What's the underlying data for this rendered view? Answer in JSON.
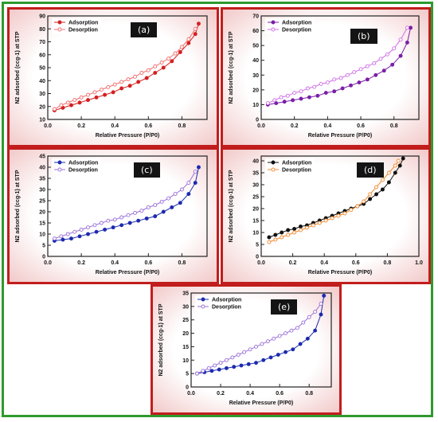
{
  "colors": {
    "frame": "#2e9a2e",
    "panel_border": "#c21d1d"
  },
  "chart_data": [
    {
      "type": "line",
      "panel_label": "(a)",
      "xlabel": "Relative Pressure (P/P0)",
      "ylabel": "N2 adsorbed (ccg-1) at STP",
      "xlim": [
        0.0,
        0.95
      ],
      "ylim": [
        10,
        90
      ],
      "xticks": [
        "0.0",
        "0.2",
        "0.4",
        "0.6",
        "0.8"
      ],
      "xtick_values": [
        0.0,
        0.2,
        0.4,
        0.6,
        0.8
      ],
      "yticks": [
        "10",
        "20",
        "30",
        "40",
        "50",
        "60",
        "70",
        "80",
        "90"
      ],
      "ytick_values": [
        10,
        20,
        30,
        40,
        50,
        60,
        70,
        80,
        90
      ],
      "legend_position": "top-left",
      "series": [
        {
          "name": "Adsorption",
          "color": "#d42020",
          "filled": true,
          "x": [
            0.04,
            0.09,
            0.14,
            0.19,
            0.24,
            0.29,
            0.34,
            0.39,
            0.44,
            0.49,
            0.54,
            0.59,
            0.64,
            0.69,
            0.74,
            0.79,
            0.84,
            0.88,
            0.9
          ],
          "y": [
            17,
            19,
            21,
            23,
            25,
            27,
            29,
            31,
            34,
            36,
            39,
            42,
            46,
            50,
            55,
            62,
            69,
            76,
            84
          ]
        },
        {
          "name": "Desorption",
          "color": "#f07070",
          "filled": false,
          "x": [
            0.04,
            0.08,
            0.12,
            0.16,
            0.2,
            0.24,
            0.28,
            0.32,
            0.36,
            0.4,
            0.44,
            0.48,
            0.52,
            0.56,
            0.6,
            0.64,
            0.68,
            0.72,
            0.76,
            0.8,
            0.84,
            0.88
          ],
          "y": [
            18,
            21,
            23,
            25,
            27,
            29,
            31,
            33,
            35,
            37,
            39,
            41,
            43,
            46,
            48,
            51,
            54,
            57,
            61,
            66,
            72,
            80
          ]
        }
      ]
    },
    {
      "type": "line",
      "panel_label": "(b)",
      "xlabel": "Relative Pressure (P/P0)",
      "ylabel": "N2 adsorbed (ccg-1) at STP",
      "xlim": [
        0.0,
        0.95
      ],
      "ylim": [
        0,
        70
      ],
      "xticks": [
        "0.0",
        "0.2",
        "0.4",
        "0.6",
        "0.8"
      ],
      "xtick_values": [
        0.0,
        0.2,
        0.4,
        0.6,
        0.8
      ],
      "yticks": [
        "0",
        "10",
        "20",
        "30",
        "40",
        "50",
        "60",
        "70"
      ],
      "ytick_values": [
        0,
        10,
        20,
        30,
        40,
        50,
        60,
        70
      ],
      "legend_position": "top-left",
      "series": [
        {
          "name": "Adsorption",
          "color": "#7a1fa8",
          "filled": true,
          "x": [
            0.04,
            0.09,
            0.14,
            0.19,
            0.24,
            0.29,
            0.34,
            0.39,
            0.44,
            0.49,
            0.54,
            0.59,
            0.64,
            0.69,
            0.74,
            0.79,
            0.84,
            0.88,
            0.9
          ],
          "y": [
            10,
            11,
            12,
            13,
            14,
            15,
            16,
            18,
            19,
            21,
            23,
            25,
            27,
            30,
            33,
            37,
            43,
            52,
            62
          ]
        },
        {
          "name": "Desorption",
          "color": "#cf6fe6",
          "filled": false,
          "x": [
            0.04,
            0.08,
            0.12,
            0.16,
            0.2,
            0.24,
            0.28,
            0.32,
            0.36,
            0.4,
            0.44,
            0.48,
            0.52,
            0.56,
            0.6,
            0.64,
            0.68,
            0.72,
            0.76,
            0.8,
            0.84,
            0.88
          ],
          "y": [
            11,
            13,
            15,
            16,
            18,
            19,
            21,
            22,
            24,
            25,
            27,
            28,
            30,
            32,
            34,
            36,
            38,
            41,
            44,
            48,
            54,
            62
          ]
        }
      ]
    },
    {
      "type": "line",
      "panel_label": "(c)",
      "xlabel": "Relative Pressure (P/P0)",
      "ylabel": "N2 adsorbed (ccg-1) at STP",
      "xlim": [
        0.0,
        0.95
      ],
      "ylim": [
        0,
        45
      ],
      "xticks": [
        "0.0",
        "0.2",
        "0.4",
        "0.6",
        "0.8"
      ],
      "xtick_values": [
        0.0,
        0.2,
        0.4,
        0.6,
        0.8
      ],
      "yticks": [
        "0",
        "5",
        "10",
        "15",
        "20",
        "25",
        "30",
        "35",
        "40",
        "45"
      ],
      "ytick_values": [
        0,
        5,
        10,
        15,
        20,
        25,
        30,
        35,
        40,
        45
      ],
      "legend_position": "top-left",
      "series": [
        {
          "name": "Adsorption",
          "color": "#1c2ab0",
          "filled": true,
          "x": [
            0.04,
            0.09,
            0.14,
            0.19,
            0.24,
            0.29,
            0.34,
            0.39,
            0.44,
            0.49,
            0.54,
            0.59,
            0.64,
            0.69,
            0.74,
            0.79,
            0.84,
            0.88,
            0.9
          ],
          "y": [
            7,
            7.5,
            8,
            9,
            10,
            11,
            12,
            13,
            14,
            15,
            16,
            17,
            18,
            20,
            22,
            24,
            28,
            33,
            40
          ]
        },
        {
          "name": "Desorption",
          "color": "#9a6fd8",
          "filled": false,
          "x": [
            0.04,
            0.08,
            0.12,
            0.16,
            0.2,
            0.24,
            0.28,
            0.32,
            0.36,
            0.4,
            0.44,
            0.48,
            0.52,
            0.56,
            0.6,
            0.64,
            0.68,
            0.72,
            0.76,
            0.8,
            0.84,
            0.88
          ],
          "y": [
            8,
            9,
            10,
            11,
            12,
            13,
            14,
            15,
            16,
            16.5,
            17.5,
            18.5,
            19.5,
            20.5,
            22,
            23,
            24.5,
            26,
            28,
            30,
            33,
            38
          ]
        }
      ]
    },
    {
      "type": "line",
      "panel_label": "(d)",
      "xlabel": "Relative Pressure (P/P0)",
      "ylabel": "N2 adsorbed (ccg-1) at STP",
      "xlim": [
        0.0,
        1.0
      ],
      "ylim": [
        0,
        42
      ],
      "xticks": [
        "0.0",
        "0.2",
        "0.4",
        "0.6",
        "0.8",
        "1.0"
      ],
      "xtick_values": [
        0.0,
        0.2,
        0.4,
        0.6,
        0.8,
        1.0
      ],
      "yticks": [
        "0",
        "5",
        "10",
        "15",
        "20",
        "25",
        "30",
        "35",
        "40"
      ],
      "ytick_values": [
        0,
        5,
        10,
        15,
        20,
        25,
        30,
        35,
        40
      ],
      "legend_position": "top-left",
      "series": [
        {
          "name": "Adsorption",
          "color": "#111111",
          "filled": true,
          "x": [
            0.05,
            0.09,
            0.13,
            0.17,
            0.21,
            0.25,
            0.29,
            0.33,
            0.37,
            0.41,
            0.45,
            0.49,
            0.53,
            0.57,
            0.61,
            0.65,
            0.69,
            0.73,
            0.77,
            0.81,
            0.85,
            0.88,
            0.9
          ],
          "y": [
            8,
            9,
            10,
            11,
            11.5,
            12.5,
            13,
            14,
            15,
            16,
            17,
            18,
            19,
            20,
            21,
            22,
            24,
            26,
            28,
            31,
            35,
            38,
            41
          ]
        },
        {
          "name": "Desorption",
          "color": "#f08a30",
          "filled": false,
          "x": [
            0.05,
            0.09,
            0.13,
            0.17,
            0.21,
            0.25,
            0.29,
            0.33,
            0.37,
            0.41,
            0.45,
            0.49,
            0.53,
            0.57,
            0.61,
            0.65,
            0.69,
            0.73,
            0.77,
            0.81,
            0.85,
            0.87
          ],
          "y": [
            6,
            7,
            8,
            9,
            10,
            11,
            12,
            13,
            14,
            15,
            16,
            17,
            18,
            19.5,
            21,
            23,
            26,
            29,
            32,
            35,
            38,
            40
          ]
        }
      ]
    },
    {
      "type": "line",
      "panel_label": "(e)",
      "xlabel": "Relative Pressure (P/P0)",
      "ylabel": "N2 adsorbed (ccg-1) at STP",
      "xlim": [
        0.0,
        0.95
      ],
      "ylim": [
        0,
        35
      ],
      "xticks": [
        "0.0",
        "0.2",
        "0.4",
        "0.6",
        "0.8"
      ],
      "xtick_values": [
        0.0,
        0.2,
        0.4,
        0.6,
        0.8
      ],
      "yticks": [
        "0",
        "5",
        "10",
        "15",
        "20",
        "25",
        "30",
        "35"
      ],
      "ytick_values": [
        0,
        5,
        10,
        15,
        20,
        25,
        30,
        35
      ],
      "legend_position": "top-left",
      "series": [
        {
          "name": "Adsorption",
          "color": "#1c2ab0",
          "filled": true,
          "x": [
            0.04,
            0.09,
            0.14,
            0.19,
            0.24,
            0.29,
            0.34,
            0.39,
            0.44,
            0.49,
            0.54,
            0.59,
            0.64,
            0.69,
            0.74,
            0.79,
            0.84,
            0.88,
            0.9
          ],
          "y": [
            5,
            5.5,
            6,
            6.5,
            7,
            7.5,
            8,
            8.5,
            9,
            10,
            11,
            12,
            13,
            14,
            16,
            18,
            21,
            27,
            34
          ]
        },
        {
          "name": "Desorption",
          "color": "#9a6fd8",
          "filled": false,
          "x": [
            0.04,
            0.08,
            0.12,
            0.16,
            0.2,
            0.24,
            0.28,
            0.32,
            0.36,
            0.4,
            0.44,
            0.48,
            0.52,
            0.56,
            0.6,
            0.64,
            0.68,
            0.72,
            0.76,
            0.8,
            0.84,
            0.88
          ],
          "y": [
            5,
            6,
            7,
            8,
            9,
            10,
            11,
            12,
            13,
            14,
            15,
            16,
            17,
            18,
            19,
            20,
            21,
            22,
            24,
            26,
            28,
            31
          ]
        }
      ]
    }
  ]
}
